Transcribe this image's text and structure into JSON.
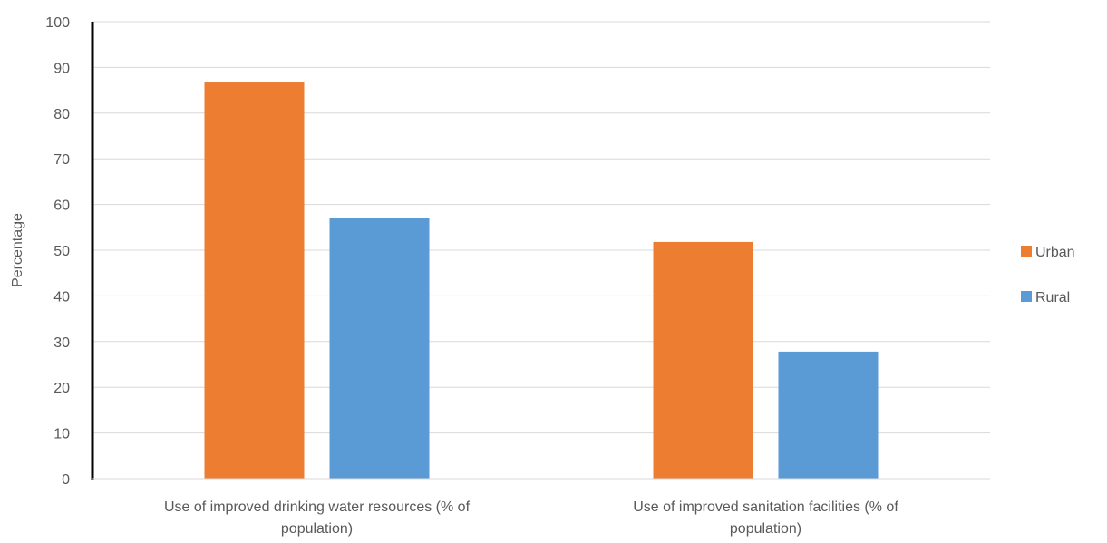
{
  "chart_data": {
    "type": "bar",
    "title": "",
    "xlabel": "",
    "ylabel": "Percentage",
    "ylim": [
      0,
      100
    ],
    "yticks": [
      0,
      10,
      20,
      30,
      40,
      50,
      60,
      70,
      80,
      90,
      100
    ],
    "grid": true,
    "legend_position": "right",
    "categories": [
      [
        "Use of improved drinking water resources (% of",
        "population)"
      ],
      [
        "Use of improved sanitation facilities (% of",
        "population)"
      ]
    ],
    "series": [
      {
        "name": "Urban",
        "values": [
          86.7,
          51.8
        ],
        "color": "#ED7D31"
      },
      {
        "name": "Rural",
        "values": [
          57.1,
          27.8
        ],
        "color": "#5B9BD5"
      }
    ]
  }
}
